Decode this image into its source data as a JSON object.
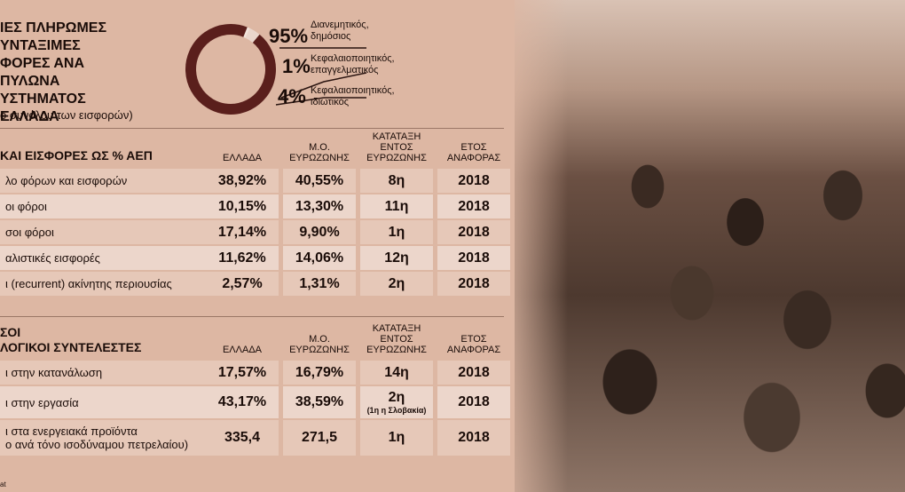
{
  "pie": {
    "title_lines": [
      "ΙΕΣ ΠΛΗΡΩΜΕΣ",
      "ΥΝΤΑΞΙΜΕΣ",
      "ΦΟΡΕΣ ΑΝΑ ΠΥΛΩΝΑ",
      "ΥΣΤΗΜΑΤΟΣ",
      "ΕΛΛΑΔΑ"
    ],
    "subtitle": "ο συνόλου των εισφορών)",
    "slices": [
      {
        "pct": "95%",
        "label_1": "Διανεμητικός,",
        "label_2": "δημόσιος",
        "value": 95,
        "color": "#5a1f1c"
      },
      {
        "pct": "1%",
        "label_1": "Κεφαλαιοποιητικός,",
        "label_2": "επαγγελματικός",
        "value": 1,
        "color": "#f2e4dc"
      },
      {
        "pct": "4%",
        "label_1": "Κεφαλαιοποιητικός,",
        "label_2": "ιδιωτικός",
        "value": 4,
        "color": "#ead6cc"
      }
    ]
  },
  "table1": {
    "section": "ΚΑΙ ΕΙΣΦΟΡΕΣ ΩΣ % ΑΕΠ",
    "headers": {
      "greece": "ΕΛΛΑΔΑ",
      "eurozone": "Μ.Ο. ΕΥΡΩΖΩΝΗΣ",
      "rank": "ΚΑΤΑΤΑΞΗ ΕΝΤΟΣ ΕΥΡΩΖΩΝΗΣ",
      "year": "ΕΤΟΣ ΑΝΑΦΟΡΑΣ"
    },
    "rows": [
      {
        "label": "λο φόρων και εισφορών",
        "greece": "38,92%",
        "eurozone": "40,55%",
        "rank": "8η",
        "year": "2018"
      },
      {
        "label": "οι φόροι",
        "greece": "10,15%",
        "eurozone": "13,30%",
        "rank": "11η",
        "year": "2018"
      },
      {
        "label": "σοι φόροι",
        "greece": "17,14%",
        "eurozone": "9,90%",
        "rank": "1η",
        "year": "2018"
      },
      {
        "label": "αλιστικές εισφορές",
        "greece": "11,62%",
        "eurozone": "14,06%",
        "rank": "12η",
        "year": "2018"
      },
      {
        "label": "ι (recurrent) ακίνητης περιουσίας",
        "greece": "2,57%",
        "eurozone": "1,31%",
        "rank": "2η",
        "year": "2018"
      }
    ]
  },
  "table2": {
    "section_1": "ΣΟΙ",
    "section_2": "ΛΟΓΙΚΟΙ ΣΥΝΤΕΛΕΣΤΕΣ",
    "headers": {
      "greece": "ΕΛΛΑΔΑ",
      "eurozone": "Μ.Ο. ΕΥΡΩΖΩΝΗΣ",
      "rank": "ΚΑΤΑΤΑΞΗ ΕΝΤΟΣ ΕΥΡΩΖΩΝΗΣ",
      "year": "ΕΤΟΣ ΑΝΑΦΟΡΑΣ"
    },
    "rows": [
      {
        "label": "ι στην κατανάλωση",
        "greece": "17,57%",
        "eurozone": "16,79%",
        "rank": "14η",
        "note": "",
        "year": "2018"
      },
      {
        "label": "ι στην εργασία",
        "greece": "43,17%",
        "eurozone": "38,59%",
        "rank": "2η",
        "note": "(1η η Σλοβακία)",
        "year": "2018"
      },
      {
        "label_1": "ι στα ενεργειακά προϊόντα",
        "label_2": "ο ανά τόνο ισοδύναμου πετρελαίου)",
        "greece": "335,4",
        "eurozone": "271,5",
        "rank": "1η",
        "note": "",
        "year": "2018"
      }
    ]
  },
  "source": "at"
}
